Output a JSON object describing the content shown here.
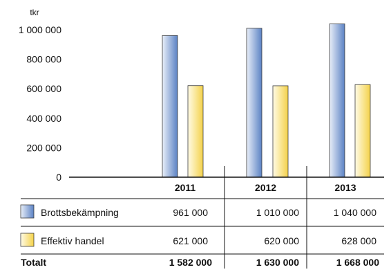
{
  "chart_data": {
    "type": "bar",
    "unit_label": "tkr",
    "categories": [
      "2011",
      "2012",
      "2013"
    ],
    "ylim": [
      0,
      1000000
    ],
    "yticks": [
      0,
      200000,
      400000,
      600000,
      800000,
      1000000
    ],
    "ytick_labels": [
      "0",
      "200 000",
      "400 000",
      "600 000",
      "800 000",
      "1 000 000"
    ],
    "series": [
      {
        "name": "Brottsbekämpning",
        "values": [
          961000,
          1010000,
          1040000
        ],
        "value_labels": [
          "961 000",
          "1 010 000",
          "1 040 000"
        ],
        "color_light": "#e8eef8",
        "color_dark": "#5b82c4"
      },
      {
        "name": "Effektiv handel",
        "values": [
          621000,
          620000,
          628000
        ],
        "value_labels": [
          "621 000",
          "620 000",
          "628 000"
        ],
        "color_light": "#fffbe6",
        "color_dark": "#f4d24a"
      }
    ],
    "totals": {
      "label": "Totalt",
      "values": [
        1582000,
        1630000,
        1668000
      ],
      "value_labels": [
        "1 582 000",
        "1 630 000",
        "1 668 000"
      ]
    },
    "grid": false,
    "legend_position": "table-bottom-left"
  }
}
